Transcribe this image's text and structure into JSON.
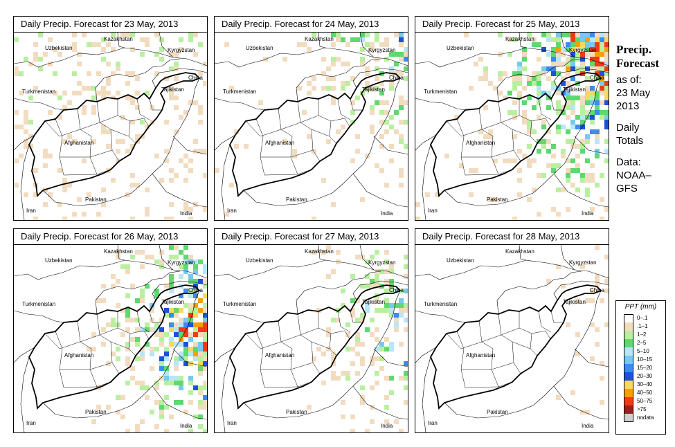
{
  "panels": [
    {
      "title": "Daily Precip. Forecast for  23 May, 2013",
      "intensity": 0.35,
      "bias": "widespread-light"
    },
    {
      "title": "Daily Precip. Forecast for  24 May, 2013",
      "intensity": 0.55,
      "bias": "northeast"
    },
    {
      "title": "Daily Precip. Forecast for  25 May, 2013",
      "intensity": 0.85,
      "bias": "northeast-heavy"
    },
    {
      "title": "Daily Precip. Forecast for  26 May, 2013",
      "intensity": 0.9,
      "bias": "east-heavy"
    },
    {
      "title": "Daily Precip. Forecast for  27 May, 2013",
      "intensity": 0.7,
      "bias": "east"
    },
    {
      "title": "Daily Precip. Forecast for  28 May, 2013",
      "intensity": 0.3,
      "bias": "northeast-light"
    }
  ],
  "countries": {
    "kazakhstan": "Kazakhstan",
    "uzbekistan": "Uzbekistan",
    "kyrgyzstan": "Kyrgyzstan",
    "turkmenistan": "Turkmenistan",
    "tajikistan": "Tajikistan",
    "china": "China",
    "afghanistan": "Afghanistan",
    "iran": "Iran",
    "pakistan": "Pakistan",
    "india": "India"
  },
  "sidebar": {
    "title_line1": "Precip.",
    "title_line2": "Forecast",
    "asof_line1": "as of:",
    "asof_line2": "23 May",
    "asof_line3": "2013",
    "totals_line1": "Daily",
    "totals_line2": "Totals",
    "data_line1": "Data:",
    "data_line2": "NOAA–",
    "data_line3": "GFS"
  },
  "legend": {
    "title": "PPT (mm)",
    "items": [
      {
        "label": "0–.1",
        "color": "#ffffff"
      },
      {
        "label": ".1–1",
        "color": "#f2dcc0"
      },
      {
        "label": "1–2",
        "color": "#b9f0a0"
      },
      {
        "label": "2–5",
        "color": "#5fd870"
      },
      {
        "label": "5–10",
        "color": "#b8e6f8"
      },
      {
        "label": "10–15",
        "color": "#78c8f0"
      },
      {
        "label": "15–20",
        "color": "#3c8cf0"
      },
      {
        "label": "20–30",
        "color": "#1e50d8"
      },
      {
        "label": "30–40",
        "color": "#f8d860"
      },
      {
        "label": "40–50",
        "color": "#f8a000"
      },
      {
        "label": "50–75",
        "color": "#f03c14"
      },
      {
        "label": ">75",
        "color": "#a01e1e"
      },
      {
        "label": "nodata",
        "color": "#d0d0d0"
      }
    ]
  }
}
